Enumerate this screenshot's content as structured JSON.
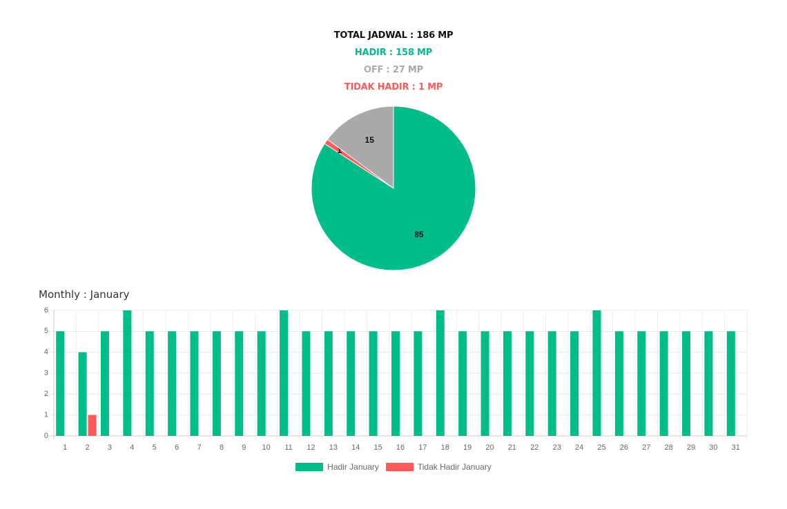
{
  "summary": {
    "total": "TOTAL JADWAL : 186 MP",
    "hadir": "HADIR : 158 MP",
    "off": "OFF : 27 MP",
    "tidak_hadir": "TIDAK HADIR : 1 MP"
  },
  "colors": {
    "green": "#00BD8A",
    "red": "#FF5A5A",
    "gray": "#A9A9A9",
    "black": "#111111"
  },
  "monthly_title": "Monthly : January",
  "chart_data": [
    {
      "type": "pie",
      "slices": [
        {
          "label": "",
          "value": 85,
          "color": "#00BD8A"
        },
        {
          "label": "",
          "value": 1,
          "color": "#FF5A5A"
        },
        {
          "label": "",
          "value": 15,
          "color": "#A9A9A9"
        }
      ],
      "data_labels": [
        "85",
        "1",
        "15"
      ]
    },
    {
      "type": "bar",
      "title": "",
      "categories": [
        "1",
        "2",
        "3",
        "4",
        "5",
        "6",
        "7",
        "8",
        "9",
        "10",
        "11",
        "12",
        "13",
        "14",
        "15",
        "16",
        "17",
        "18",
        "19",
        "20",
        "21",
        "22",
        "23",
        "24",
        "25",
        "26",
        "27",
        "28",
        "29",
        "30",
        "31"
      ],
      "series": [
        {
          "name": "Hadir January",
          "color": "#00BD8A",
          "values": [
            5,
            4,
            5,
            6,
            5,
            5,
            5,
            5,
            5,
            5,
            6,
            5,
            5,
            5,
            5,
            5,
            5,
            6,
            5,
            5,
            5,
            5,
            5,
            5,
            6,
            5,
            5,
            5,
            5,
            5,
            5
          ]
        },
        {
          "name": "Tidak Hadir January",
          "color": "#FF5A5A",
          "values": [
            0,
            1,
            0,
            0,
            0,
            0,
            0,
            0,
            0,
            0,
            0,
            0,
            0,
            0,
            0,
            0,
            0,
            0,
            0,
            0,
            0,
            0,
            0,
            0,
            0,
            0,
            0,
            0,
            0,
            0,
            0
          ]
        }
      ],
      "yticks": [
        "0",
        "1",
        "2",
        "3",
        "4",
        "5",
        "6"
      ],
      "ylim": [
        0,
        6
      ],
      "grid": true,
      "legend_position": "bottom"
    }
  ]
}
